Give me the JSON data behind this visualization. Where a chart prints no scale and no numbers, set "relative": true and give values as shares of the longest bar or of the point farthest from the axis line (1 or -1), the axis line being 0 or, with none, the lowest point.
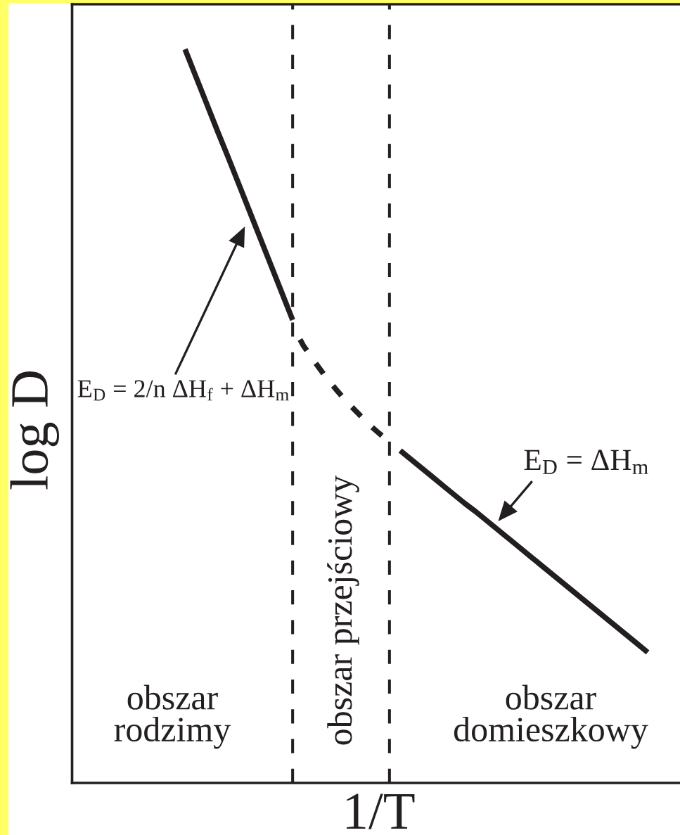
{
  "chart_data": {
    "type": "line",
    "relative": true,
    "xlabel": "1/T",
    "ylabel": "log D",
    "categories": [
      null,
      null,
      null,
      null,
      null,
      null,
      null,
      null,
      null,
      null,
      null,
      null,
      null,
      null,
      null,
      null,
      null,
      null,
      null,
      null,
      null,
      null,
      null,
      null,
      null,
      null,
      null,
      null,
      null,
      null,
      null,
      null,
      null,
      null,
      null,
      null,
      null,
      null,
      null,
      null,
      null,
      null,
      null,
      null,
      null,
      null,
      null,
      null,
      null,
      null,
      null,
      null,
      null,
      null,
      null,
      null,
      null
    ],
    "series": [
      {
        "color": "#231f20",
        "line_style": "solid",
        "values": [
          null,
          null,
          null,
          null,
          null,
          null,
          null,
          null,
          null,
          null,
          1.0,
          0.963,
          0.926,
          0.889,
          0.853,
          0.816,
          0.779,
          0.742,
          0.705,
          0.668,
          0.631,
          null,
          null,
          null,
          null,
          null,
          null,
          null,
          null,
          null,
          null,
          null,
          null,
          null,
          null,
          null,
          null,
          null,
          null,
          null,
          null,
          null,
          null,
          null,
          null,
          null,
          null,
          null,
          null,
          null,
          null,
          null,
          null,
          null,
          null,
          null,
          null
        ]
      },
      {
        "color": "#231f20",
        "line_style": "dashed",
        "values": [
          null,
          null,
          null,
          null,
          null,
          null,
          null,
          null,
          null,
          null,
          null,
          null,
          null,
          null,
          null,
          null,
          null,
          null,
          null,
          null,
          0.623,
          0.596,
          0.575,
          0.555,
          0.537,
          0.52,
          0.505,
          0.49,
          0.477,
          0.465,
          null,
          null,
          null,
          null,
          null,
          null,
          null,
          null,
          null,
          null,
          null,
          null,
          null,
          null,
          null,
          null,
          null,
          null,
          null,
          null,
          null,
          null,
          null,
          null,
          null,
          null,
          null
        ]
      },
      {
        "color": "#231f20",
        "line_style": "solid",
        "values": [
          null,
          null,
          null,
          null,
          null,
          null,
          null,
          null,
          null,
          null,
          null,
          null,
          null,
          null,
          null,
          null,
          null,
          null,
          null,
          null,
          null,
          null,
          null,
          null,
          null,
          null,
          null,
          null,
          null,
          null,
          0.453,
          0.441,
          0.429,
          0.417,
          0.405,
          0.393,
          0.381,
          0.37,
          0.358,
          0.346,
          0.334,
          0.322,
          0.31,
          0.298,
          0.286,
          0.274,
          0.262,
          0.25,
          0.238,
          0.226,
          0.214,
          0.202,
          0.19,
          0.178,
          null,
          null,
          null
        ]
      }
    ],
    "annotations": [
      "E$_{D}$ = 2/n ΔH$_{f}$ + ΔH$_{m}$",
      "E$_{D}$ = ΔH$_{m}$",
      "obszar\nrodzimy",
      "obszar przejściowy",
      "obszar\ndomieszkowy"
    ]
  }
}
